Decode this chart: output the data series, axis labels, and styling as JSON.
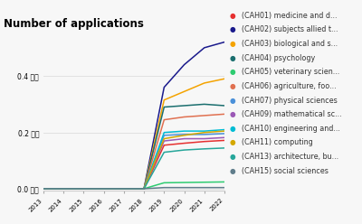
{
  "title": "Number of applications",
  "years": [
    2013,
    2014,
    2015,
    2016,
    2017,
    2018,
    2019,
    2020,
    2021,
    2022
  ],
  "series": [
    {
      "label": "(CAH01) medicine and d...",
      "color": "#e63030",
      "data": [
        0.001,
        0.001,
        0.001,
        0.001,
        0.001,
        0.001,
        0.155,
        0.162,
        0.168,
        0.172
      ]
    },
    {
      "label": "(CAH02) subjects allied t...",
      "color": "#1a1a8c",
      "data": [
        0.001,
        0.001,
        0.001,
        0.001,
        0.001,
        0.001,
        0.36,
        0.44,
        0.5,
        0.52
      ]
    },
    {
      "label": "(CAH03) biological and s...",
      "color": "#f4a300",
      "data": [
        0.001,
        0.001,
        0.001,
        0.001,
        0.001,
        0.001,
        0.315,
        0.345,
        0.375,
        0.39
      ]
    },
    {
      "label": "(CAH04) psychology",
      "color": "#1a6e6e",
      "data": [
        0.001,
        0.001,
        0.001,
        0.001,
        0.001,
        0.001,
        0.29,
        0.295,
        0.3,
        0.295
      ]
    },
    {
      "label": "(CAH05) veterinary scien...",
      "color": "#2ecc71",
      "data": [
        0.001,
        0.001,
        0.001,
        0.001,
        0.001,
        0.001,
        0.022,
        0.023,
        0.024,
        0.025
      ]
    },
    {
      "label": "(CAH06) agriculture, foo...",
      "color": "#e07050",
      "data": [
        0.001,
        0.001,
        0.001,
        0.001,
        0.001,
        0.001,
        0.245,
        0.255,
        0.26,
        0.265
      ]
    },
    {
      "label": "(CAH07) physical sciences",
      "color": "#4a90d9",
      "data": [
        0.001,
        0.001,
        0.001,
        0.001,
        0.001,
        0.001,
        0.19,
        0.193,
        0.193,
        0.196
      ]
    },
    {
      "label": "(CAH09) mathematical sc...",
      "color": "#9b59b6",
      "data": [
        0.001,
        0.001,
        0.001,
        0.001,
        0.001,
        0.001,
        0.17,
        0.178,
        0.178,
        0.182
      ]
    },
    {
      "label": "(CAH10) engineering and...",
      "color": "#00bcd4",
      "data": [
        0.001,
        0.001,
        0.001,
        0.001,
        0.001,
        0.001,
        0.2,
        0.205,
        0.205,
        0.21
      ]
    },
    {
      "label": "(CAH11) computing",
      "color": "#d4a800",
      "data": [
        0.001,
        0.001,
        0.001,
        0.001,
        0.001,
        0.001,
        0.178,
        0.19,
        0.2,
        0.205
      ]
    },
    {
      "label": "(CAH13) architecture, bu...",
      "color": "#26a69a",
      "data": [
        0.001,
        0.001,
        0.001,
        0.001,
        0.001,
        0.001,
        0.13,
        0.138,
        0.142,
        0.145
      ]
    },
    {
      "label": "(CAH15) social sciences",
      "color": "#607d8b",
      "data": [
        0.001,
        0.001,
        0.001,
        0.001,
        0.001,
        0.001,
        0.005,
        0.005,
        0.005,
        0.005
      ]
    }
  ],
  "ylim": [
    -0.005,
    0.55
  ],
  "yticks": [
    0.0,
    0.2,
    0.4
  ],
  "ytick_labels": [
    "0.0 百万",
    "0.2 百万",
    "0.4 百万"
  ],
  "bg_color": "#f7f7f7",
  "legend_fontsize": 5.8,
  "title_fontsize": 8.5,
  "line_width": 1.1
}
